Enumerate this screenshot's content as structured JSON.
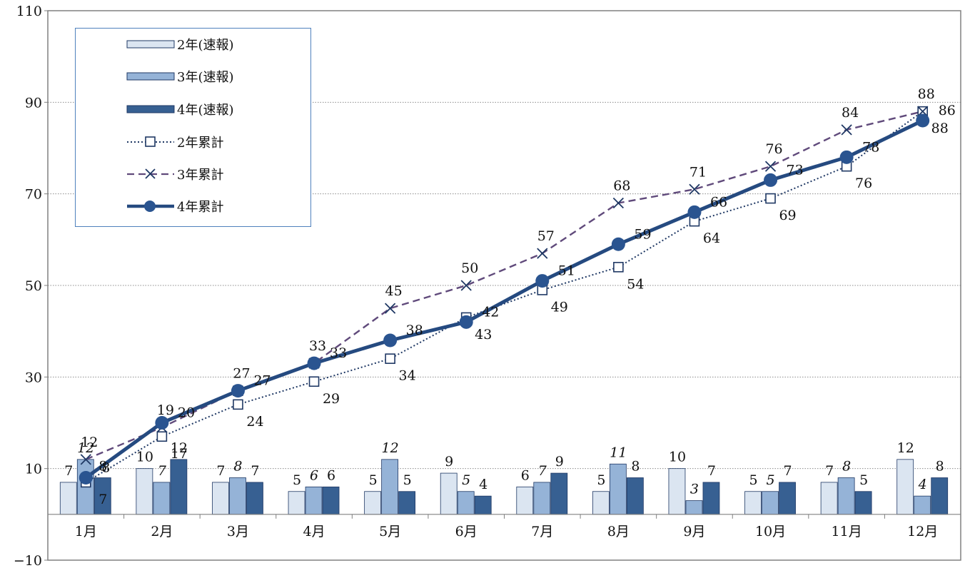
{
  "chart_data": {
    "type": "bar",
    "categories": [
      "1月",
      "2月",
      "3月",
      "4月",
      "5月",
      "6月",
      "7月",
      "8月",
      "9月",
      "10月",
      "11月",
      "12月"
    ],
    "ylim": [
      -10,
      110
    ],
    "yticks": [
      -10,
      10,
      30,
      50,
      70,
      90,
      110
    ],
    "grid": true,
    "legend_position": "top-left",
    "series": [
      {
        "name": "2年(速報)",
        "type": "bar",
        "color": "#dbe5f1",
        "values": [
          7,
          10,
          7,
          5,
          5,
          9,
          6,
          5,
          10,
          5,
          7,
          12
        ]
      },
      {
        "name": "3年(速報)",
        "type": "bar",
        "color": "#95b3d7",
        "values": [
          12,
          7,
          8,
          6,
          12,
          5,
          7,
          11,
          3,
          5,
          8,
          4
        ]
      },
      {
        "name": "4年(速報)",
        "type": "bar",
        "color": "#376092",
        "values": [
          8,
          12,
          7,
          6,
          5,
          4,
          9,
          8,
          7,
          7,
          5,
          8
        ]
      },
      {
        "name": "2年累計",
        "type": "line",
        "style": "dotted-square",
        "color": "#1f3864",
        "values": [
          7,
          17,
          24,
          29,
          34,
          43,
          49,
          54,
          64,
          69,
          76,
          88
        ]
      },
      {
        "name": "3年累計",
        "type": "line",
        "style": "dashed-x",
        "color": "#604a7b",
        "marker_color": "#1f3864",
        "values": [
          12,
          19,
          27,
          33,
          45,
          50,
          57,
          68,
          71,
          76,
          84,
          88
        ]
      },
      {
        "name": "4年累計",
        "type": "line",
        "style": "solid-circle",
        "color": "#254a80",
        "values": [
          8,
          20,
          27,
          33,
          38,
          42,
          51,
          59,
          66,
          73,
          78,
          86
        ]
      }
    ]
  }
}
